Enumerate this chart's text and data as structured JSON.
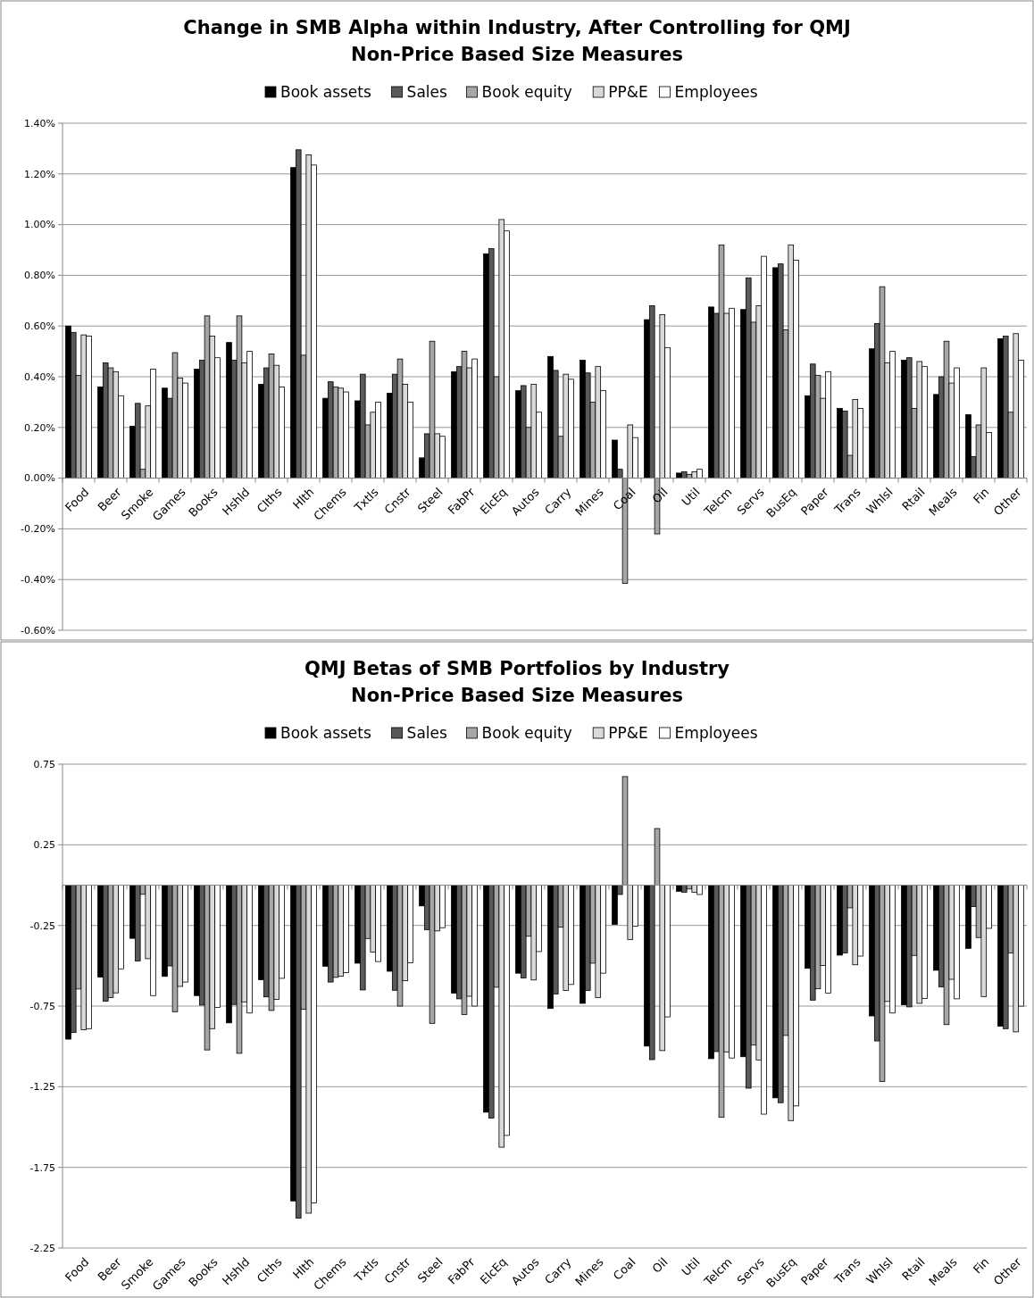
{
  "chart_data": [
    {
      "type": "bar",
      "title": "Change in SMB Alpha within Industry, After Controlling for QMJ",
      "subtitle": "Non-Price Based Size Measures",
      "legend": "top",
      "grid": "y",
      "categories": [
        "Food",
        "Beer",
        "Smoke",
        "Games",
        "Books",
        "Hshld",
        "Clths",
        "Hlth",
        "Chems",
        "Txtls",
        "Cnstr",
        "Steel",
        "FabPr",
        "ElcEq",
        "Autos",
        "Carry",
        "Mines",
        "Coal",
        "Oil",
        "Util",
        "Telcm",
        "Servs",
        "BusEq",
        "Paper",
        "Trans",
        "Whlsl",
        "Rtail",
        "Meals",
        "Fin",
        "Other"
      ],
      "ylim": [
        -0.6,
        1.4
      ],
      "yticks": [
        {
          "value": -0.6,
          "label": "-0.60%"
        },
        {
          "value": -0.4,
          "label": "-0.40%"
        },
        {
          "value": -0.2,
          "label": "-0.20%"
        },
        {
          "value": 0,
          "label": "0.00%"
        },
        {
          "value": 0.2,
          "label": "0.20%"
        },
        {
          "value": 0.4,
          "label": "0.40%"
        },
        {
          "value": 0.6,
          "label": "0.60%"
        },
        {
          "value": 0.8,
          "label": "0.80%"
        },
        {
          "value": 1.0,
          "label": "1.00%"
        },
        {
          "value": 1.2,
          "label": "1.20%"
        },
        {
          "value": 1.4,
          "label": "1.40%"
        }
      ],
      "series": [
        {
          "name": "Book assets",
          "color": "#000000",
          "values": [
            0.6,
            0.36,
            0.205,
            0.355,
            0.43,
            0.535,
            0.37,
            1.225,
            0.315,
            0.305,
            0.335,
            0.08,
            0.42,
            0.885,
            0.345,
            0.48,
            0.465,
            0.15,
            0.625,
            0.02,
            0.675,
            0.665,
            0.83,
            0.325,
            0.275,
            0.51,
            0.465,
            0.33,
            0.25,
            0.55
          ]
        },
        {
          "name": "Sales",
          "color": "#595959",
          "values": [
            0.575,
            0.455,
            0.295,
            0.315,
            0.465,
            0.465,
            0.435,
            1.295,
            0.38,
            0.41,
            0.41,
            0.175,
            0.44,
            0.905,
            0.365,
            0.425,
            0.415,
            0.035,
            0.68,
            0.025,
            0.65,
            0.79,
            0.845,
            0.45,
            0.265,
            0.61,
            0.475,
            0.4,
            0.085,
            0.56
          ]
        },
        {
          "name": "Book equity",
          "color": "#a6a6a6",
          "values": [
            0.405,
            0.435,
            0.035,
            0.495,
            0.64,
            0.64,
            0.49,
            0.485,
            0.36,
            0.21,
            0.47,
            0.54,
            0.5,
            0.4,
            0.2,
            0.165,
            0.3,
            -0.415,
            -0.22,
            0.015,
            0.92,
            0.615,
            0.585,
            0.405,
            0.09,
            0.755,
            0.275,
            0.54,
            0.21,
            0.26
          ]
        },
        {
          "name": "PP&E",
          "color": "#d9d9d9",
          "values": [
            0.565,
            0.42,
            0.285,
            0.395,
            0.56,
            0.455,
            0.445,
            1.275,
            0.355,
            0.26,
            0.37,
            0.175,
            0.435,
            1.02,
            0.37,
            0.41,
            0.44,
            0.21,
            0.645,
            0.025,
            0.65,
            0.68,
            0.92,
            0.315,
            0.31,
            0.455,
            0.46,
            0.375,
            0.435,
            0.57
          ]
        },
        {
          "name": "Employees",
          "color": "#ffffff",
          "values": [
            0.56,
            0.325,
            0.43,
            0.375,
            0.475,
            0.5,
            0.36,
            1.235,
            0.34,
            0.3,
            0.3,
            0.165,
            0.47,
            0.975,
            0.26,
            0.39,
            0.345,
            0.16,
            0.515,
            0.035,
            0.67,
            0.875,
            0.86,
            0.42,
            0.275,
            0.5,
            0.44,
            0.435,
            0.18,
            0.465
          ]
        }
      ]
    },
    {
      "type": "bar",
      "title": "QMJ Betas of SMB Portfolios by Industry",
      "subtitle": "Non-Price Based Size Measures",
      "legend": "top",
      "grid": "y",
      "categories": [
        "Food",
        "Beer",
        "Smoke",
        "Games",
        "Books",
        "Hshld",
        "Clths",
        "Hlth",
        "Chems",
        "Txtls",
        "Cnstr",
        "Steel",
        "FabPr",
        "ElcEq",
        "Autos",
        "Carry",
        "Mines",
        "Coal",
        "Oil",
        "Util",
        "Telcm",
        "Servs",
        "BusEq",
        "Paper",
        "Trans",
        "Whlsl",
        "Rtail",
        "Meals",
        "Fin",
        "Other"
      ],
      "ylim": [
        -2.25,
        0.75
      ],
      "yticks": [
        -2.25,
        -1.75,
        -1.25,
        -0.75,
        -0.25,
        0.25,
        0.75
      ],
      "series": [
        {
          "name": "Book assets",
          "color": "#000000",
          "values": [
            -0.955,
            -0.57,
            -0.33,
            -0.566,
            -0.685,
            -0.854,
            -0.587,
            -1.958,
            -0.503,
            -0.484,
            -0.534,
            -0.129,
            -0.67,
            -1.408,
            -0.546,
            -0.765,
            -0.733,
            -0.243,
            -0.998,
            -0.038,
            -1.076,
            -1.064,
            -1.319,
            -0.516,
            -0.434,
            -0.811,
            -0.741,
            -0.528,
            -0.392,
            -0.875
          ]
        },
        {
          "name": "Sales",
          "color": "#595959",
          "values": [
            -0.914,
            -0.72,
            -0.47,
            -0.501,
            -0.744,
            -0.74,
            -0.693,
            -2.065,
            -0.601,
            -0.65,
            -0.652,
            -0.276,
            -0.705,
            -1.444,
            -0.576,
            -0.675,
            -0.653,
            -0.058,
            -1.082,
            -0.044,
            -1.032,
            -1.259,
            -1.349,
            -0.713,
            -0.42,
            -0.966,
            -0.755,
            -0.631,
            -0.133,
            -0.89
          ]
        },
        {
          "name": "Book equity",
          "color": "#a6a6a6",
          "values": [
            -0.644,
            -0.697,
            -0.057,
            -0.785,
            -1.022,
            -1.043,
            -0.777,
            -0.77,
            -0.572,
            -0.331,
            -0.75,
            -0.857,
            -0.803,
            -0.633,
            -0.317,
            -0.261,
            -0.484,
            0.673,
            0.351,
            -0.024,
            -1.44,
            -0.992,
            -0.932,
            -0.643,
            -0.141,
            -1.217,
            -0.436,
            -0.865,
            -0.325,
            -0.42
          ]
        },
        {
          "name": "PP&E",
          "color": "#d9d9d9",
          "values": [
            -0.897,
            -0.668,
            -0.456,
            -0.628,
            -0.89,
            -0.724,
            -0.709,
            -2.034,
            -0.564,
            -0.415,
            -0.593,
            -0.284,
            -0.689,
            -1.625,
            -0.588,
            -0.653,
            -0.697,
            -0.337,
            -1.026,
            -0.044,
            -1.034,
            -1.084,
            -1.46,
            -0.498,
            -0.494,
            -0.721,
            -0.733,
            -0.584,
            -0.691,
            -0.91
          ]
        },
        {
          "name": "Employees",
          "color": "#ffffff",
          "values": [
            -0.89,
            -0.519,
            -0.685,
            -0.601,
            -0.758,
            -0.793,
            -0.578,
            -1.971,
            -0.542,
            -0.474,
            -0.482,
            -0.264,
            -0.75,
            -1.552,
            -0.412,
            -0.616,
            -0.546,
            -0.255,
            -0.817,
            -0.058,
            -1.072,
            -1.42,
            -1.369,
            -0.669,
            -0.44,
            -0.793,
            -0.703,
            -0.705,
            -0.268,
            -0.75
          ]
        }
      ]
    }
  ]
}
